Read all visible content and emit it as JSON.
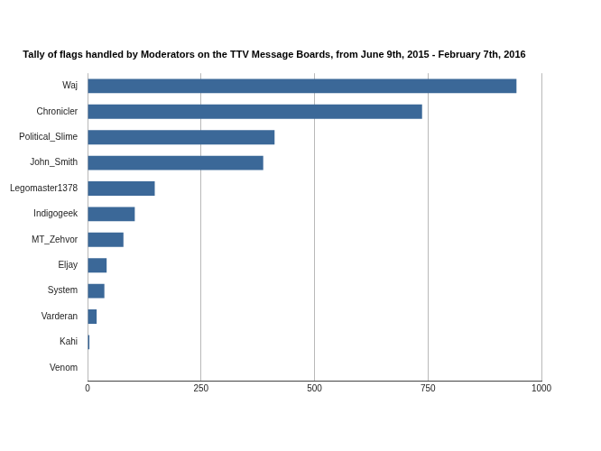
{
  "chart_data": {
    "type": "bar",
    "orientation": "horizontal",
    "title": "Tally of flags handled by Moderators on the TTV Message Boards, from June 9th, 2015 - February 7th, 2016",
    "categories": [
      "Waj",
      "Chronicler",
      "Political_Slime",
      "John_Smith",
      "Legomaster1378",
      "Indigogeek",
      "MT_Zehvor",
      "Eljay",
      "System",
      "Varderan",
      "Kahi",
      "Venom"
    ],
    "values": [
      945,
      737,
      412,
      387,
      148,
      104,
      79,
      42,
      37,
      20,
      4,
      0
    ],
    "color": "#3b6898",
    "xlim": [
      0,
      1000
    ],
    "xticks": [
      0,
      250,
      500,
      750,
      1000
    ],
    "grid": true
  }
}
